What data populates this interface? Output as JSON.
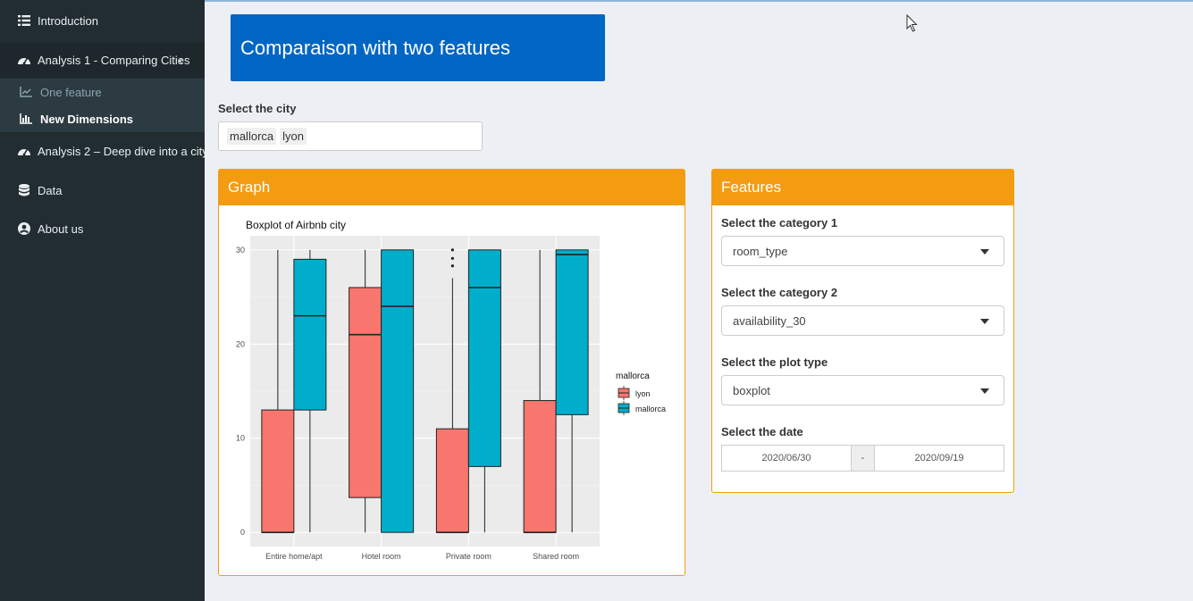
{
  "sidebar": {
    "items": [
      {
        "label": "Introduction",
        "icon": "list-icon"
      },
      {
        "label": "Analysis 1 - Comparing Cities",
        "icon": "dashboard-icon"
      },
      {
        "label": "Analysis 2 – Deep dive into a city",
        "icon": "dashboard-icon"
      },
      {
        "label": "Data",
        "icon": "database-icon"
      },
      {
        "label": "About us",
        "icon": "user-circle-icon"
      }
    ],
    "subitems": [
      {
        "label": "One feature",
        "icon": "line-chart-icon"
      },
      {
        "label": "New Dimensions",
        "icon": "bar-chart-icon"
      }
    ]
  },
  "page": {
    "title": "Comparaison with two features"
  },
  "city": {
    "label": "Select the city",
    "tags": [
      "mallorca",
      "lyon"
    ]
  },
  "graph_box": {
    "title": "Graph"
  },
  "features_box": {
    "title": "Features",
    "cat1_label": "Select the category 1",
    "cat1_value": "room_type",
    "cat2_label": "Select the category 2",
    "cat2_value": "availability_30",
    "plot_label": "Select the plot type",
    "plot_value": "boxplot",
    "date_label": "Select the date",
    "date_start": "2020/06/30",
    "date_sep": "-",
    "date_end": "2020/09/19"
  },
  "colors": {
    "lyon": "#f8766d",
    "mallorca": "#00aecb",
    "accent": "#f39c12",
    "hero": "#0066c3"
  },
  "chart_data": {
    "type": "boxplot",
    "title": "Boxplot of Airbnb city",
    "xlabel": "",
    "ylabel": "",
    "ylim": [
      -1.5,
      31.5
    ],
    "yticks": [
      0,
      10,
      20,
      30
    ],
    "categories": [
      "Entire home/apt",
      "Hotel room",
      "Private room",
      "Shared room"
    ],
    "legend_title": "mallorca",
    "legend_position": "right",
    "series": [
      {
        "name": "lyon",
        "boxes": [
          {
            "min": 0,
            "q1": 0,
            "median": 0,
            "q3": 13,
            "max": 30
          },
          {
            "min": 0,
            "q1": 3.7,
            "median": 21,
            "q3": 26,
            "max": 30
          },
          {
            "min": 0,
            "q1": 0,
            "median": 0,
            "q3": 11,
            "max": 27,
            "outliers": [
              28.3,
              29.1,
              30
            ]
          },
          {
            "min": 0,
            "q1": 0,
            "median": 0,
            "q3": 14,
            "max": 30
          }
        ]
      },
      {
        "name": "mallorca",
        "boxes": [
          {
            "min": 0,
            "q1": 13,
            "median": 23,
            "q3": 29,
            "max": 30
          },
          {
            "min": 0,
            "q1": 0,
            "median": 24,
            "q3": 30,
            "max": 30
          },
          {
            "min": 0,
            "q1": 7,
            "median": 26,
            "q3": 30,
            "max": 30
          },
          {
            "min": 0,
            "q1": 12.5,
            "median": 29.5,
            "q3": 30,
            "max": 30
          }
        ]
      }
    ]
  }
}
